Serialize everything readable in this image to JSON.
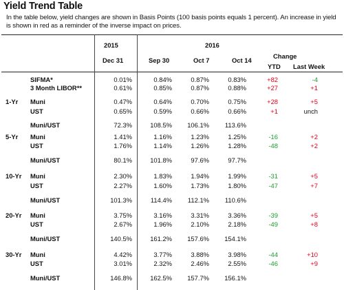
{
  "title": "Yield Trend Table",
  "description": "In the table below, yield changes are shown in Basis Points (100 basis points equals 1 percent). An increase in yield is shown in red as a reminder of the inverse impact on prices.",
  "colors": {
    "increase": "#e0001b",
    "decrease": "#1a9d2c",
    "neutral": "#111111"
  },
  "headers": {
    "year_2015": "2015",
    "year_2016": "2016",
    "change": "Change",
    "col_dec31": "Dec 31",
    "col_sep30": "Sep 30",
    "col_oct7": "Oct 7",
    "col_oct14": "Oct 14",
    "col_ytd": "YTD",
    "col_last_week": "Last Week"
  },
  "rows": [
    {
      "group": "",
      "label": "SIFMA*",
      "dec31": "0.01%",
      "sep30": "0.84%",
      "oct7": "0.87%",
      "oct14": "0.83%",
      "ytd": "+82",
      "ytd_dir": "up",
      "lw": "-4",
      "lw_dir": "down"
    },
    {
      "group": "",
      "label": "3 Month LIBOR**",
      "dec31": "0.61%",
      "sep30": "0.85%",
      "oct7": "0.87%",
      "oct14": "0.88%",
      "ytd": "+27",
      "ytd_dir": "up",
      "lw": "+1",
      "lw_dir": "up"
    },
    {
      "group": "1-Yr",
      "label": "Muni",
      "dec31": "0.47%",
      "sep30": "0.64%",
      "oct7": "0.70%",
      "oct14": "0.75%",
      "ytd": "+28",
      "ytd_dir": "up",
      "lw": "+5",
      "lw_dir": "up"
    },
    {
      "group": "",
      "label": "UST",
      "dec31": "0.65%",
      "sep30": "0.59%",
      "oct7": "0.66%",
      "oct14": "0.66%",
      "ytd": "+1",
      "ytd_dir": "up",
      "lw": "unch",
      "lw_dir": "flat"
    },
    {
      "group": "",
      "label": "Muni/UST",
      "dec31": "72.3%",
      "sep30": "108.5%",
      "oct7": "106.1%",
      "oct14": "113.6%",
      "ytd": "",
      "ytd_dir": "flat",
      "lw": "",
      "lw_dir": "flat"
    },
    {
      "group": "5-Yr",
      "label": "Muni",
      "dec31": "1.41%",
      "sep30": "1.16%",
      "oct7": "1.23%",
      "oct14": "1.25%",
      "ytd": "-16",
      "ytd_dir": "down",
      "lw": "+2",
      "lw_dir": "up"
    },
    {
      "group": "",
      "label": "UST",
      "dec31": "1.76%",
      "sep30": "1.14%",
      "oct7": "1.26%",
      "oct14": "1.28%",
      "ytd": "-48",
      "ytd_dir": "down",
      "lw": "+2",
      "lw_dir": "up"
    },
    {
      "group": "",
      "label": "Muni/UST",
      "dec31": "80.1%",
      "sep30": "101.8%",
      "oct7": "97.6%",
      "oct14": "97.7%",
      "ytd": "",
      "ytd_dir": "flat",
      "lw": "",
      "lw_dir": "flat"
    },
    {
      "group": "10-Yr",
      "label": "Muni",
      "dec31": "2.30%",
      "sep30": "1.83%",
      "oct7": "1.94%",
      "oct14": "1.99%",
      "ytd": "-31",
      "ytd_dir": "down",
      "lw": "+5",
      "lw_dir": "up"
    },
    {
      "group": "",
      "label": "UST",
      "dec31": "2.27%",
      "sep30": "1.60%",
      "oct7": "1.73%",
      "oct14": "1.80%",
      "ytd": "-47",
      "ytd_dir": "down",
      "lw": "+7",
      "lw_dir": "up"
    },
    {
      "group": "",
      "label": "Muni/UST",
      "dec31": "101.3%",
      "sep30": "114.4%",
      "oct7": "112.1%",
      "oct14": "110.6%",
      "ytd": "",
      "ytd_dir": "flat",
      "lw": "",
      "lw_dir": "flat"
    },
    {
      "group": "20-Yr",
      "label": "Muni",
      "dec31": "3.75%",
      "sep30": "3.16%",
      "oct7": "3.31%",
      "oct14": "3.36%",
      "ytd": "-39",
      "ytd_dir": "down",
      "lw": "+5",
      "lw_dir": "up"
    },
    {
      "group": "",
      "label": "UST",
      "dec31": "2.67%",
      "sep30": "1.96%",
      "oct7": "2.10%",
      "oct14": "2.18%",
      "ytd": "-49",
      "ytd_dir": "down",
      "lw": "+8",
      "lw_dir": "up"
    },
    {
      "group": "",
      "label": "Muni/UST",
      "dec31": "140.5%",
      "sep30": "161.2%",
      "oct7": "157.6%",
      "oct14": "154.1%",
      "ytd": "",
      "ytd_dir": "flat",
      "lw": "",
      "lw_dir": "flat"
    },
    {
      "group": "30-Yr",
      "label": "Muni",
      "dec31": "4.42%",
      "sep30": "3.77%",
      "oct7": "3.88%",
      "oct14": "3.98%",
      "ytd": "-44",
      "ytd_dir": "down",
      "lw": "+10",
      "lw_dir": "up"
    },
    {
      "group": "",
      "label": "UST",
      "dec31": "3.01%",
      "sep30": "2.32%",
      "oct7": "2.46%",
      "oct14": "2.55%",
      "ytd": "-46",
      "ytd_dir": "down",
      "lw": "+9",
      "lw_dir": "up"
    },
    {
      "group": "",
      "label": "Muni/UST",
      "dec31": "146.8%",
      "sep30": "162.5%",
      "oct7": "157.7%",
      "oct14": "156.1%",
      "ytd": "",
      "ytd_dir": "flat",
      "lw": "",
      "lw_dir": "flat"
    }
  ]
}
